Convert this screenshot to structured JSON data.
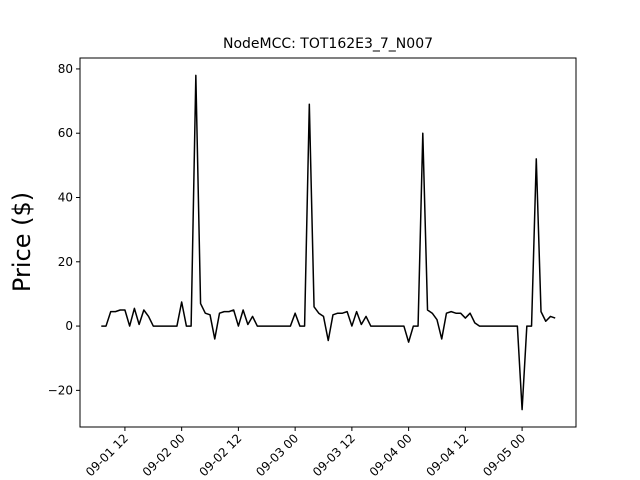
{
  "chart_data": {
    "type": "line",
    "title": "NodeMCC: TOT162E3_7_N007",
    "ylabel": "Price ($)",
    "x": [
      "09-01 07",
      "09-01 08",
      "09-01 09",
      "09-01 10",
      "09-01 11",
      "09-01 12",
      "09-01 13",
      "09-01 14",
      "09-01 15",
      "09-01 16",
      "09-01 17",
      "09-01 18",
      "09-01 19",
      "09-01 20",
      "09-01 21",
      "09-01 22",
      "09-01 23",
      "09-02 00",
      "09-02 01",
      "09-02 02",
      "09-02 03",
      "09-02 04",
      "09-02 05",
      "09-02 06",
      "09-02 07",
      "09-02 08",
      "09-02 09",
      "09-02 10",
      "09-02 11",
      "09-02 12",
      "09-02 13",
      "09-02 14",
      "09-02 15",
      "09-02 16",
      "09-02 17",
      "09-02 18",
      "09-02 19",
      "09-02 20",
      "09-02 21",
      "09-02 22",
      "09-02 23",
      "09-03 00",
      "09-03 01",
      "09-03 02",
      "09-03 03",
      "09-03 04",
      "09-03 05",
      "09-03 06",
      "09-03 07",
      "09-03 08",
      "09-03 09",
      "09-03 10",
      "09-03 11",
      "09-03 12",
      "09-03 13",
      "09-03 14",
      "09-03 15",
      "09-03 16",
      "09-03 17",
      "09-03 18",
      "09-03 19",
      "09-03 20",
      "09-03 21",
      "09-03 22",
      "09-03 23",
      "09-04 00",
      "09-04 01",
      "09-04 02",
      "09-04 03",
      "09-04 04",
      "09-04 05",
      "09-04 06",
      "09-04 07",
      "09-04 08",
      "09-04 09",
      "09-04 10",
      "09-04 11",
      "09-04 12",
      "09-04 13",
      "09-04 14",
      "09-04 15",
      "09-04 16",
      "09-04 17",
      "09-04 18",
      "09-04 19",
      "09-04 20",
      "09-04 21",
      "09-04 22",
      "09-04 23",
      "09-05 00",
      "09-05 01",
      "09-05 02",
      "09-05 03",
      "09-05 04",
      "09-05 05",
      "09-05 06",
      "09-05 07"
    ],
    "series": [
      {
        "color": "#000000",
        "values": [
          0,
          0,
          4.5,
          4.5,
          5,
          5,
          0,
          5.5,
          0.5,
          5,
          3,
          0,
          0,
          0,
          0,
          0,
          0,
          7.5,
          0,
          0,
          78,
          7,
          4,
          3.5,
          -4,
          4,
          4.5,
          4.5,
          5,
          0,
          5,
          0.5,
          3,
          0,
          0,
          0,
          0,
          0,
          0,
          0,
          0,
          4,
          0,
          0,
          69,
          6,
          4,
          3,
          -4.5,
          3.5,
          4,
          4,
          4.5,
          0,
          4.5,
          0.5,
          3,
          0,
          0,
          0,
          0,
          0,
          0,
          0,
          0,
          -5,
          0,
          0,
          60,
          5,
          4,
          2,
          -4,
          4,
          4.5,
          4,
          4,
          2.5,
          4,
          1,
          0,
          0,
          0,
          0,
          0,
          0,
          0,
          0,
          0,
          -26,
          0,
          0,
          52,
          4.5,
          1.5,
          3,
          2.5
        ]
      }
    ],
    "xlim": [
      "09-01 02:30",
      "09-05 11:24"
    ],
    "xticks": [
      "09-01 12",
      "09-02 00",
      "09-02 12",
      "09-03 00",
      "09-03 12",
      "09-04 00",
      "09-04 12",
      "09-05 00"
    ],
    "ylim": [
      -31.4,
      83.4
    ],
    "yticks": [
      {
        "value": -20,
        "label": "−20"
      },
      0,
      20,
      40,
      60,
      80
    ]
  }
}
